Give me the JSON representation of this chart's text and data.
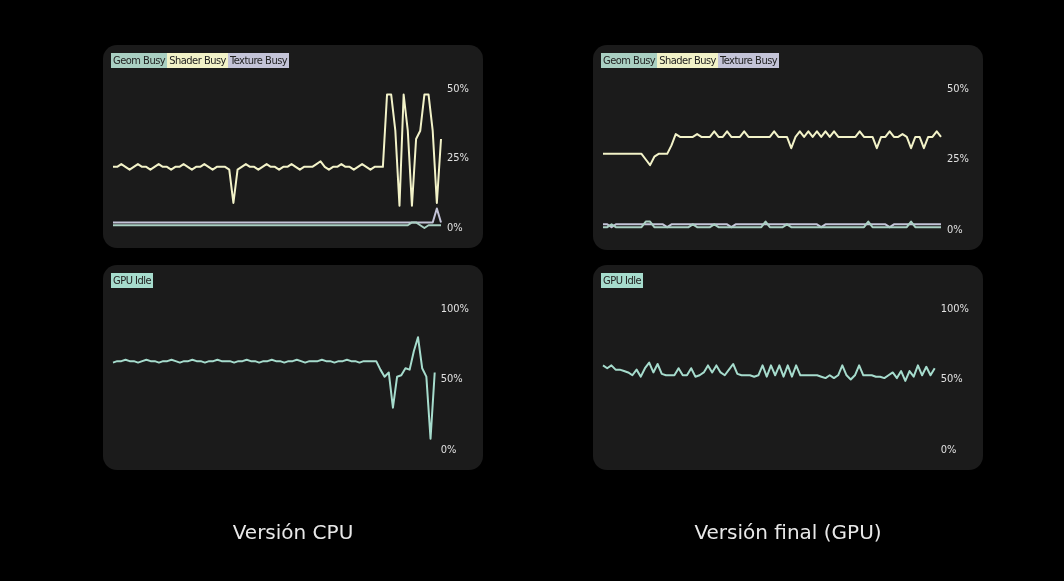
{
  "chart_data": [
    {
      "type": "line",
      "categories": [
        null,
        null,
        null,
        null,
        null,
        null,
        null,
        null,
        null,
        null,
        null,
        null,
        null,
        null,
        null,
        null,
        null,
        null,
        null,
        null,
        null,
        null,
        null,
        null,
        null,
        null,
        null,
        null,
        null,
        null,
        null,
        null,
        null,
        null,
        null,
        null,
        null,
        null,
        null,
        null,
        null,
        null,
        null,
        null,
        null,
        null,
        null,
        null,
        null,
        null,
        null,
        null,
        null,
        null,
        null,
        null,
        null,
        null,
        null,
        null,
        null,
        null,
        null,
        null,
        null,
        null,
        null,
        null,
        null,
        null,
        null,
        null,
        null,
        null,
        null,
        null,
        null,
        null,
        null,
        null
      ],
      "series": [
        {
          "name": "Geom Busy",
          "color": "#a9cfc2",
          "values": [
            1,
            1,
            1,
            1,
            1,
            1,
            1,
            1,
            1,
            1,
            1,
            1,
            1,
            1,
            1,
            1,
            1,
            1,
            1,
            1,
            1,
            1,
            1,
            1,
            1,
            1,
            1,
            1,
            1,
            1,
            1,
            1,
            1,
            1,
            1,
            1,
            1,
            1,
            1,
            1,
            1,
            1,
            1,
            1,
            1,
            1,
            1,
            1,
            1,
            1,
            1,
            1,
            1,
            1,
            1,
            1,
            1,
            1,
            1,
            1,
            1,
            1,
            1,
            1,
            1,
            1,
            1,
            1,
            1,
            1,
            1,
            1,
            2,
            2,
            1,
            0,
            1,
            1,
            1,
            1
          ]
        },
        {
          "name": "Shader Busy",
          "color": "#f2f2c8",
          "values": [
            22,
            22,
            23,
            22,
            21,
            22,
            23,
            22,
            22,
            21,
            22,
            23,
            22,
            22,
            21,
            22,
            22,
            23,
            22,
            21,
            22,
            22,
            23,
            22,
            21,
            22,
            22,
            22,
            21,
            9,
            21,
            22,
            23,
            22,
            22,
            21,
            22,
            23,
            22,
            22,
            21,
            22,
            22,
            23,
            22,
            21,
            22,
            22,
            22,
            23,
            24,
            22,
            21,
            22,
            22,
            23,
            22,
            22,
            21,
            22,
            23,
            22,
            21,
            22,
            22,
            22,
            48,
            48,
            35,
            8,
            48,
            35,
            8,
            32,
            35,
            48,
            48,
            35,
            9,
            32
          ]
        },
        {
          "name": "Texture Busy",
          "color": "#c4c4d8",
          "values": [
            2,
            2,
            2,
            2,
            2,
            2,
            2,
            2,
            2,
            2,
            2,
            2,
            2,
            2,
            2,
            2,
            2,
            2,
            2,
            2,
            2,
            2,
            2,
            2,
            2,
            2,
            2,
            2,
            2,
            2,
            2,
            2,
            2,
            2,
            2,
            2,
            2,
            2,
            2,
            2,
            2,
            2,
            2,
            2,
            2,
            2,
            2,
            2,
            2,
            2,
            2,
            2,
            2,
            2,
            2,
            2,
            2,
            2,
            2,
            2,
            2,
            2,
            2,
            2,
            2,
            2,
            2,
            2,
            2,
            2,
            2,
            2,
            2,
            2,
            2,
            2,
            2,
            2,
            7,
            2
          ]
        }
      ],
      "ylim": [
        0,
        50
      ],
      "yticks": [
        {
          "value": 50,
          "label": "50%"
        },
        {
          "value": 25,
          "label": "25%"
        },
        {
          "value": 0,
          "label": "0%"
        }
      ],
      "tick_labels": "y",
      "grid": false,
      "legend": "top left",
      "marker": "none"
    },
    {
      "type": "line",
      "categories": [
        null,
        null,
        null,
        null,
        null,
        null,
        null,
        null,
        null,
        null,
        null,
        null,
        null,
        null,
        null,
        null,
        null,
        null,
        null,
        null,
        null,
        null,
        null,
        null,
        null,
        null,
        null,
        null,
        null,
        null,
        null,
        null,
        null,
        null,
        null,
        null,
        null,
        null,
        null,
        null,
        null,
        null,
        null,
        null,
        null,
        null,
        null,
        null,
        null,
        null,
        null,
        null,
        null,
        null,
        null,
        null,
        null,
        null,
        null,
        null,
        null,
        null,
        null,
        null,
        null,
        null,
        null,
        null,
        null,
        null,
        null,
        null,
        null,
        null,
        null,
        null,
        null,
        null,
        null,
        null
      ],
      "series": [
        {
          "name": "Geom Busy",
          "color": "#a9cfc2",
          "values": [
            1,
            1,
            2,
            1,
            1,
            1,
            1,
            1,
            1,
            1,
            3,
            3,
            1,
            1,
            1,
            1,
            1,
            1,
            1,
            1,
            1,
            2,
            1,
            1,
            1,
            1,
            2,
            1,
            1,
            1,
            1,
            1,
            1,
            1,
            1,
            1,
            1,
            1,
            3,
            1,
            1,
            1,
            1,
            2,
            1,
            1,
            1,
            1,
            1,
            1,
            1,
            1,
            1,
            1,
            1,
            1,
            1,
            1,
            1,
            1,
            1,
            1,
            3,
            1,
            1,
            1,
            1,
            1,
            1,
            1,
            1,
            1,
            3,
            1,
            1,
            1,
            1,
            1,
            1,
            1
          ]
        },
        {
          "name": "Shader Busy",
          "color": "#f2f2c8",
          "values": [
            27,
            27,
            27,
            27,
            27,
            27,
            27,
            27,
            27,
            27,
            25,
            23,
            26,
            27,
            27,
            27,
            30,
            34,
            33,
            33,
            33,
            33,
            34,
            33,
            33,
            33,
            35,
            33,
            33,
            35,
            33,
            33,
            33,
            35,
            33,
            33,
            33,
            33,
            33,
            33,
            35,
            33,
            33,
            33,
            29,
            33,
            35,
            33,
            35,
            33,
            35,
            33,
            35,
            33,
            35,
            33,
            33,
            33,
            33,
            33,
            35,
            33,
            33,
            33,
            29,
            33,
            33,
            35,
            33,
            33,
            34,
            33,
            29,
            33,
            33,
            29,
            33,
            33,
            35,
            33
          ]
        },
        {
          "name": "Texture Busy",
          "color": "#c4c4d8",
          "values": [
            2,
            2,
            1,
            2,
            2,
            2,
            2,
            2,
            2,
            2,
            2,
            2,
            2,
            2,
            2,
            1,
            2,
            2,
            2,
            2,
            2,
            2,
            2,
            2,
            2,
            2,
            2,
            2,
            2,
            2,
            1,
            2,
            2,
            2,
            2,
            2,
            2,
            2,
            2,
            2,
            2,
            2,
            2,
            2,
            2,
            2,
            2,
            2,
            2,
            2,
            2,
            1,
            2,
            2,
            2,
            2,
            2,
            2,
            2,
            2,
            2,
            2,
            2,
            2,
            2,
            2,
            2,
            1,
            2,
            2,
            2,
            2,
            2,
            2,
            2,
            2,
            2,
            2,
            2,
            2
          ]
        }
      ],
      "ylim": [
        0,
        50
      ],
      "yticks": [
        {
          "value": 50,
          "label": "50%"
        },
        {
          "value": 25,
          "label": "25%"
        },
        {
          "value": 0,
          "label": "0%"
        }
      ],
      "tick_labels": "y",
      "grid": false,
      "legend": "top left",
      "marker": "none"
    },
    {
      "type": "line",
      "categories": [
        null,
        null,
        null,
        null,
        null,
        null,
        null,
        null,
        null,
        null,
        null,
        null,
        null,
        null,
        null,
        null,
        null,
        null,
        null,
        null,
        null,
        null,
        null,
        null,
        null,
        null,
        null,
        null,
        null,
        null,
        null,
        null,
        null,
        null,
        null,
        null,
        null,
        null,
        null,
        null,
        null,
        null,
        null,
        null,
        null,
        null,
        null,
        null,
        null,
        null,
        null,
        null,
        null,
        null,
        null,
        null,
        null,
        null,
        null,
        null,
        null,
        null,
        null,
        null,
        null,
        null,
        null,
        null,
        null,
        null,
        null,
        null,
        null,
        null,
        null,
        null,
        null,
        null
      ],
      "series": [
        {
          "name": "GPU Idle",
          "color": "#a6dccd",
          "values": [
            62,
            63,
            63,
            64,
            63,
            63,
            62,
            63,
            64,
            63,
            63,
            62,
            63,
            63,
            64,
            63,
            62,
            63,
            63,
            64,
            63,
            63,
            62,
            63,
            63,
            64,
            63,
            63,
            63,
            62,
            63,
            63,
            64,
            63,
            63,
            62,
            63,
            63,
            64,
            63,
            63,
            62,
            63,
            63,
            64,
            63,
            62,
            63,
            63,
            63,
            64,
            63,
            63,
            62,
            63,
            63,
            64,
            63,
            63,
            62,
            63,
            63,
            63,
            63,
            57,
            52,
            55,
            30,
            52,
            53,
            58,
            57,
            70,
            80,
            58,
            52,
            8,
            55
          ]
        }
      ],
      "ylim": [
        0,
        100
      ],
      "yticks": [
        {
          "value": 100,
          "label": "100%"
        },
        {
          "value": 50,
          "label": "50%"
        },
        {
          "value": 0,
          "label": "0%"
        }
      ],
      "tick_labels": "y",
      "grid": false,
      "legend": "top left",
      "marker": "none",
      "annotations": [
        "Versión CPU"
      ]
    },
    {
      "type": "line",
      "categories": [
        null,
        null,
        null,
        null,
        null,
        null,
        null,
        null,
        null,
        null,
        null,
        null,
        null,
        null,
        null,
        null,
        null,
        null,
        null,
        null,
        null,
        null,
        null,
        null,
        null,
        null,
        null,
        null,
        null,
        null,
        null,
        null,
        null,
        null,
        null,
        null,
        null,
        null,
        null,
        null,
        null,
        null,
        null,
        null,
        null,
        null,
        null,
        null,
        null,
        null,
        null,
        null,
        null,
        null,
        null,
        null,
        null,
        null,
        null,
        null,
        null,
        null,
        null,
        null,
        null,
        null,
        null,
        null,
        null,
        null,
        null,
        null,
        null,
        null,
        null,
        null,
        null,
        null,
        null,
        null
      ],
      "series": [
        {
          "name": "GPU Idle",
          "color": "#a6dccd",
          "values": [
            60,
            58,
            60,
            57,
            57,
            56,
            55,
            53,
            57,
            52,
            58,
            62,
            55,
            61,
            54,
            53,
            53,
            53,
            58,
            53,
            53,
            58,
            52,
            53,
            55,
            60,
            55,
            60,
            55,
            53,
            57,
            61,
            54,
            53,
            53,
            53,
            52,
            53,
            60,
            52,
            60,
            53,
            60,
            52,
            60,
            52,
            60,
            53,
            53,
            53,
            53,
            53,
            52,
            51,
            53,
            51,
            53,
            60,
            53,
            50,
            53,
            60,
            53,
            53,
            53,
            52,
            52,
            51,
            53,
            55,
            51,
            56,
            49,
            56,
            52,
            60,
            53,
            59,
            53,
            58
          ]
        }
      ],
      "ylim": [
        0,
        100
      ],
      "yticks": [
        {
          "value": 100,
          "label": "100%"
        },
        {
          "value": 50,
          "label": "50%"
        },
        {
          "value": 0,
          "label": "0%"
        }
      ],
      "tick_labels": "y",
      "grid": false,
      "legend": "top left",
      "marker": "none",
      "annotations": [
        "Versión final (GPU)"
      ]
    }
  ]
}
